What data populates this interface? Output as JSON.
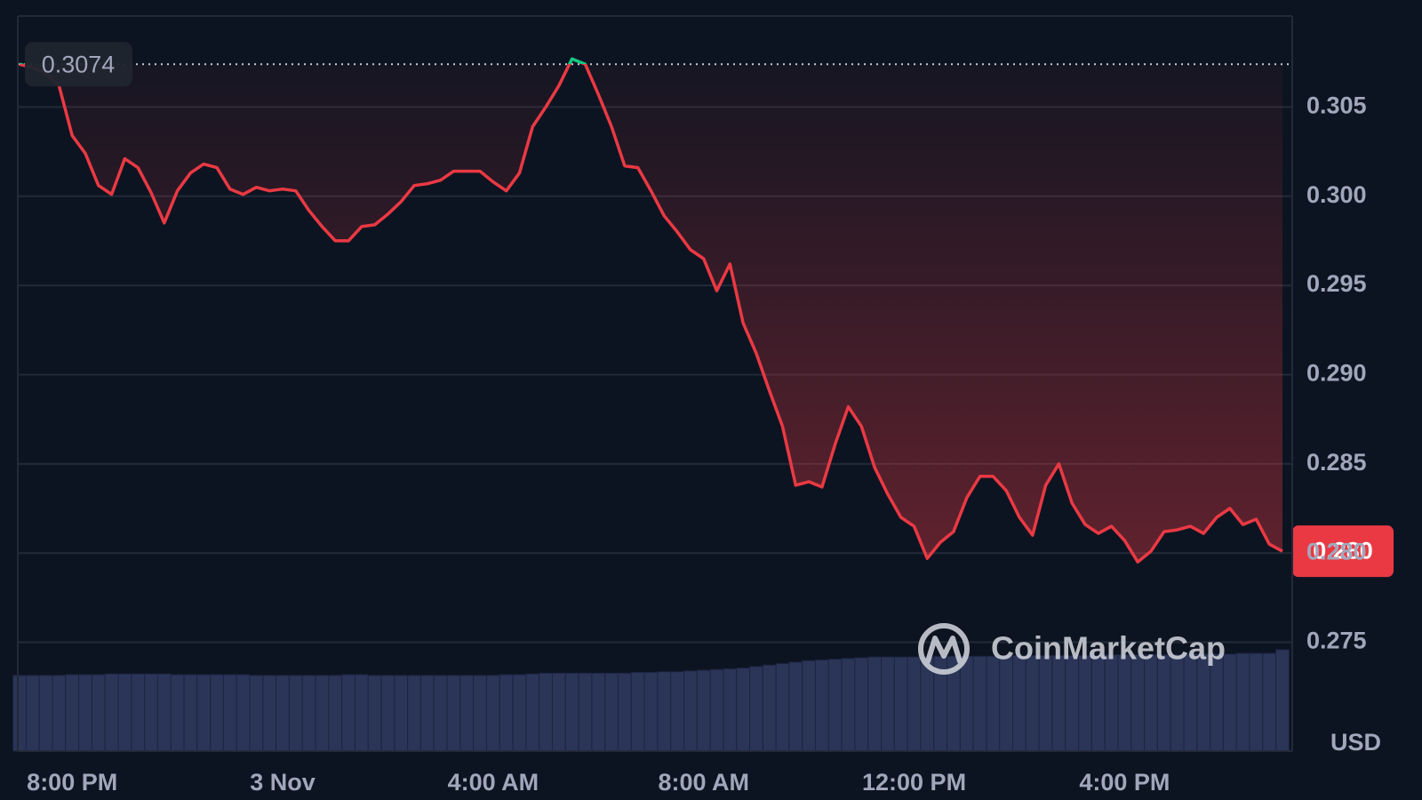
{
  "chart_data": {
    "type": "line",
    "categories": [
      null,
      null,
      null,
      null,
      "8:00 PM",
      null,
      null,
      null,
      null,
      null,
      null,
      null,
      null,
      null,
      null,
      null,
      null,
      null,
      null,
      null,
      "3 Nov",
      null,
      null,
      null,
      null,
      null,
      null,
      null,
      null,
      null,
      null,
      null,
      null,
      null,
      null,
      null,
      "4:00 AM",
      null,
      null,
      null,
      null,
      null,
      null,
      null,
      null,
      null,
      null,
      null,
      null,
      null,
      null,
      null,
      "8:00 AM",
      null,
      null,
      null,
      null,
      null,
      null,
      null,
      null,
      null,
      null,
      null,
      null,
      null,
      null,
      null,
      "12:00 PM",
      null,
      null,
      null,
      null,
      null,
      null,
      null,
      null,
      null,
      null,
      null,
      null,
      null,
      null,
      null,
      "4:00 PM",
      null,
      null,
      null,
      null,
      null,
      null,
      null,
      null,
      null,
      null,
      null,
      null
    ],
    "values": [
      0.3074,
      0.3072,
      0.3069,
      0.3062,
      0.3034,
      0.3024,
      0.3006,
      0.3001,
      0.3021,
      0.3016,
      0.3002,
      0.2985,
      0.3003,
      0.3013,
      0.3018,
      0.3016,
      0.3004,
      0.3001,
      0.3005,
      0.3003,
      0.3004,
      0.3003,
      0.2992,
      0.2983,
      0.2975,
      0.2975,
      0.2983,
      0.2984,
      0.299,
      0.2997,
      0.3006,
      0.3007,
      0.3009,
      0.3014,
      0.3014,
      0.3014,
      0.3008,
      0.3003,
      0.3013,
      0.3039,
      0.305,
      0.3062,
      0.3077,
      0.3074,
      0.3057,
      0.3039,
      0.3017,
      0.3016,
      0.3003,
      0.2989,
      0.298,
      0.297,
      0.2965,
      0.2947,
      0.2962,
      0.2929,
      0.2912,
      0.2891,
      0.2871,
      0.2838,
      0.284,
      0.2837,
      0.2861,
      0.2882,
      0.2871,
      0.2848,
      0.2833,
      0.282,
      0.2815,
      0.2797,
      0.2806,
      0.2812,
      0.2831,
      0.2843,
      0.2843,
      0.2835,
      0.282,
      0.281,
      0.2838,
      0.285,
      0.2828,
      0.2816,
      0.2811,
      0.2815,
      0.2807,
      0.2795,
      0.2801,
      0.2812,
      0.2813,
      0.2815,
      0.2811,
      0.282,
      0.2825,
      0.2816,
      0.2819,
      0.2805,
      0.2801
    ],
    "color": "#ea3943",
    "color_above": "#16c784",
    "volume": {
      "type": "bar",
      "axis": "y2",
      "color": "#2b3558",
      "values": [
        10.3,
        10.3,
        10.3,
        10.3,
        10.4,
        10.4,
        10.4,
        10.5,
        10.5,
        10.5,
        10.5,
        10.5,
        10.4,
        10.4,
        10.4,
        10.4,
        10.4,
        10.4,
        10.3,
        10.3,
        10.3,
        10.3,
        10.3,
        10.3,
        10.3,
        10.4,
        10.4,
        10.3,
        10.3,
        10.3,
        10.3,
        10.3,
        10.3,
        10.3,
        10.3,
        10.3,
        10.3,
        10.4,
        10.4,
        10.5,
        10.6,
        10.6,
        10.6,
        10.6,
        10.6,
        10.6,
        10.6,
        10.7,
        10.7,
        10.8,
        10.8,
        10.9,
        11.0,
        11.1,
        11.2,
        11.3,
        11.5,
        11.7,
        11.9,
        12.1,
        12.3,
        12.4,
        12.5,
        12.6,
        12.7,
        12.8,
        12.8,
        12.8,
        12.8,
        12.8,
        12.9,
        12.9,
        12.9,
        12.9,
        12.9,
        12.9,
        13.0,
        13.0,
        13.0,
        13.0,
        13.0,
        13.0,
        13.0,
        13.1,
        13.1,
        13.1,
        13.1,
        13.1,
        13.1,
        13.2,
        13.2,
        13.2,
        13.2,
        13.3,
        13.3,
        13.3,
        13.8
      ]
    },
    "ylim": [
      0.2689,
      0.3101
    ],
    "yticks": [
      0.275,
      {
        "value": 0.28,
        "label": "0.280"
      },
      0.285,
      {
        "value": 0.29,
        "label": "0.290"
      },
      0.295,
      {
        "value": 0.3,
        "label": "0.300"
      },
      0.305
    ],
    "y2lim": [
      0,
      100
    ],
    "grid": true,
    "reference_value": 0.3074,
    "last_price": {
      "value": 0.2801,
      "label": "0.280"
    },
    "currency": "USD",
    "watermark": "CoinMarketCap"
  }
}
